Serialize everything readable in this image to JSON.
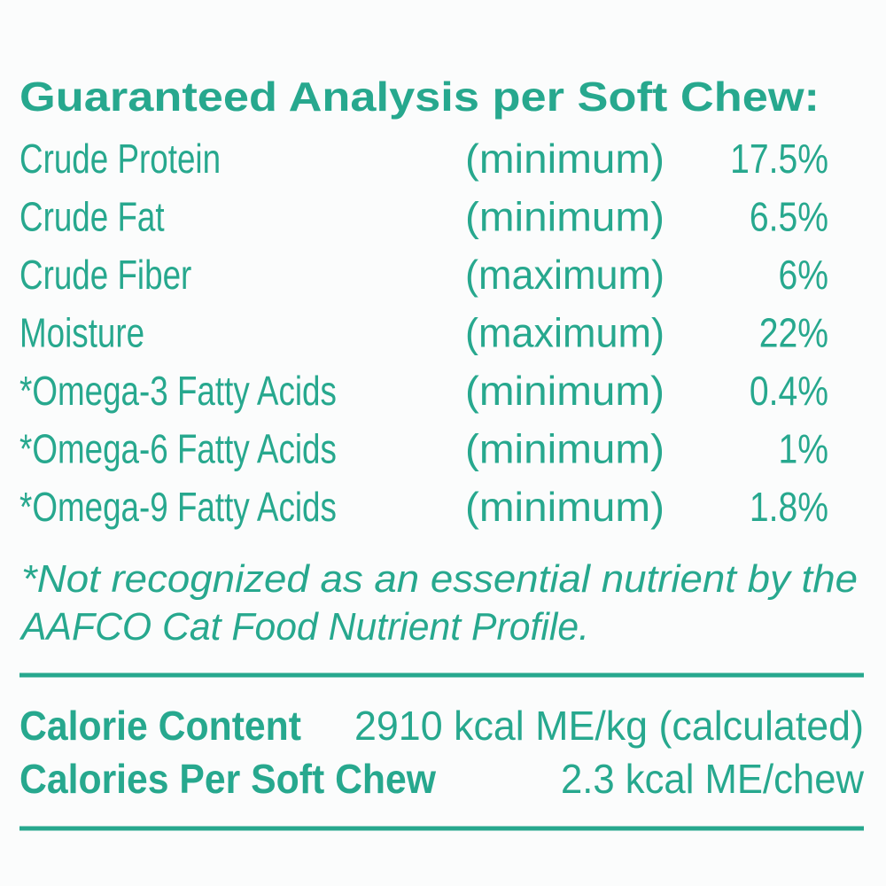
{
  "header": {
    "title": "Guaranteed Analysis per Soft Chew:"
  },
  "analysis": {
    "rows": [
      [
        "Crude Protein",
        "(minimum)",
        "17.5%"
      ],
      [
        "Crude Fat",
        "(minimum)",
        "6.5%"
      ],
      [
        "Crude Fiber",
        "(maximum)",
        "6%"
      ],
      [
        "Moisture",
        "(maximum)",
        "22%"
      ],
      [
        "*Omega-3 Fatty Acids",
        "(minimum)",
        "0.4%"
      ],
      [
        "*Omega-6 Fatty Acids",
        "(minimum)",
        "1%"
      ],
      [
        "*Omega-9 Fatty Acids",
        "(minimum)",
        "1.8%"
      ]
    ]
  },
  "footnote": {
    "lines": [
      "*Not recognized as an essential nutrient by the",
      "AAFCO Cat Food Nutrient Profile."
    ]
  },
  "calories": {
    "rows": [
      [
        "Calorie Content",
        "2910 kcal ME/kg (calculated)"
      ],
      [
        "Calories Per Soft Chew",
        "2.3 kcal ME/chew"
      ]
    ]
  }
}
